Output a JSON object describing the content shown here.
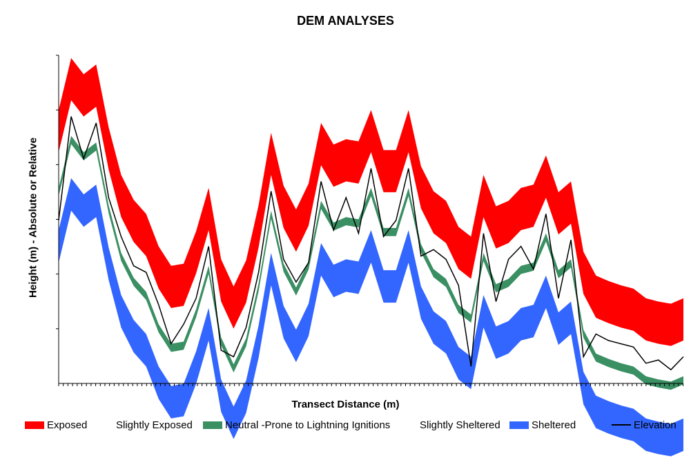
{
  "colors": {
    "exposed": "#ff0000",
    "neutral": "#3a8f63",
    "sheltered": "#3366ff",
    "elevation": "#000000"
  },
  "chart_data": {
    "type": "area",
    "title": "DEM ANALYSES",
    "xlabel": "Transect Distance (m)",
    "ylabel": "Height (m) - Absolute or Relative",
    "x_tick_labels": "none shown",
    "y_tick_labels": "none shown",
    "grid": false,
    "legend_position": "bottom",
    "x": [
      0,
      2,
      4,
      6,
      8,
      10,
      12,
      14,
      16,
      18,
      20,
      22,
      24,
      26,
      28,
      30,
      32,
      34,
      36,
      38,
      40,
      42,
      44,
      46,
      48,
      50,
      52,
      54,
      56,
      58,
      60,
      62,
      64,
      66,
      68,
      70,
      72,
      74,
      76,
      78,
      80,
      82,
      84,
      86,
      88,
      90,
      92,
      94,
      96,
      98,
      100
    ],
    "elevation": [
      0.5,
      0.82,
      0.69,
      0.8,
      0.57,
      0.45,
      0.36,
      0.34,
      0.24,
      0.12,
      0.18,
      0.26,
      0.42,
      0.1,
      0.08,
      0.17,
      0.34,
      0.59,
      0.38,
      0.31,
      0.37,
      0.62,
      0.47,
      0.57,
      0.46,
      0.66,
      0.45,
      0.5,
      0.66,
      0.39,
      0.41,
      0.38,
      0.3,
      0.05,
      0.46,
      0.25,
      0.38,
      0.42,
      0.35,
      0.52,
      0.26,
      0.44,
      0.08,
      0.15,
      0.13,
      0.12,
      0.11,
      0.06,
      0.07,
      0.04,
      0.08
    ],
    "legend": [
      {
        "name": "Exposed",
        "type": "band"
      },
      {
        "name": "Slightly Exposed",
        "type": "band"
      },
      {
        "name": "Neutral -Prone to Lightning Ignitions",
        "type": "band"
      },
      {
        "name": "Slightly Sheltered",
        "type": "band"
      },
      {
        "name": "Sheltered",
        "type": "band"
      },
      {
        "name": "Elevation",
        "type": "line"
      }
    ]
  }
}
